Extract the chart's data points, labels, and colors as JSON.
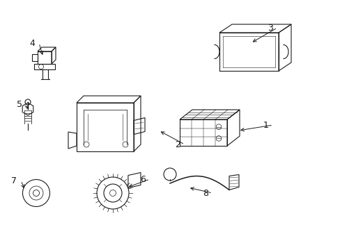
{
  "bg_color": "#ffffff",
  "line_color": "#1a1a1a",
  "figsize": [
    4.89,
    3.6
  ],
  "dpi": 100,
  "xlim": [
    0,
    4.89
  ],
  "ylim": [
    0,
    3.6
  ]
}
